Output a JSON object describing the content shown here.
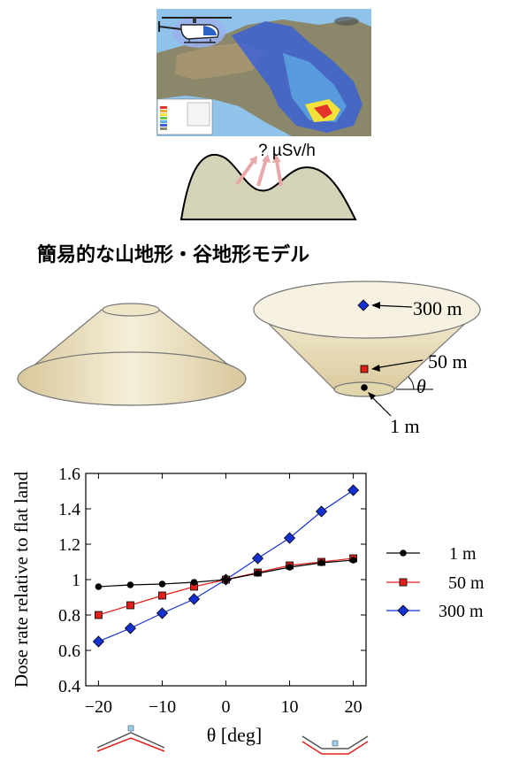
{
  "top": {
    "dose_question": "? µSv/h",
    "map_colors": {
      "sea": "#8fc3ea",
      "land": "#8e8a6a",
      "plume_blue": "#3b62d4",
      "plume_yellow": "#f2e23a",
      "plume_red": "#e3342b"
    }
  },
  "section_title": "簡易的な山地形・谷地形モデル",
  "cone_labels": {
    "h300": "300 m",
    "h50": "50 m",
    "h1": "1 m",
    "theta": "θ"
  },
  "legend": {
    "entries": [
      "1 m",
      "50 m",
      "300 m"
    ]
  },
  "chart_data": {
    "type": "line",
    "xlabel": "θ [deg]",
    "ylabel": "Dose rate relative to flat land",
    "xlim": [
      -22,
      22
    ],
    "ylim": [
      0.4,
      1.6
    ],
    "xticks": [
      -20,
      -10,
      0,
      10,
      20
    ],
    "yticks": [
      0.4,
      0.6,
      0.8,
      1,
      1.2,
      1.4,
      1.6
    ],
    "xtick_labels": [
      "−20",
      "−10",
      "0",
      "10",
      "20"
    ],
    "ytick_labels": [
      "0.4",
      "0.6",
      "0.8",
      "1",
      "1.2",
      "1.4",
      "1.6"
    ],
    "x": [
      -20,
      -15,
      -10,
      -5,
      0,
      5,
      10,
      15,
      20
    ],
    "series": [
      {
        "name": "1 m",
        "color": "#000000",
        "marker": "circle",
        "values": [
          0.96,
          0.97,
          0.975,
          0.985,
          1.0,
          1.035,
          1.07,
          1.095,
          1.11
        ]
      },
      {
        "name": "50 m",
        "color": "#e0201a",
        "marker": "square",
        "values": [
          0.8,
          0.855,
          0.91,
          0.96,
          1.0,
          1.04,
          1.08,
          1.1,
          1.12
        ]
      },
      {
        "name": "300 m",
        "color": "#1530d0",
        "marker": "diamond",
        "values": [
          0.65,
          0.725,
          0.81,
          0.89,
          1.0,
          1.12,
          1.235,
          1.385,
          1.505
        ]
      }
    ],
    "grid": false,
    "legend_position": "right"
  }
}
